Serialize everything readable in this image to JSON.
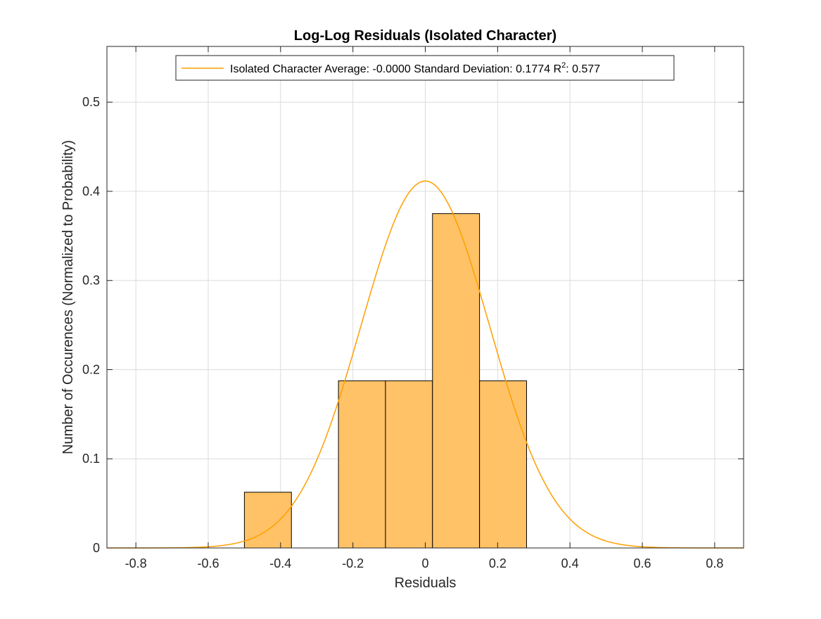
{
  "chart_data": {
    "type": "bar",
    "title": "Log-Log Residuals (Isolated Character)",
    "xlabel": "Residuals",
    "ylabel": "Number of Occurences (Normalized to Probability)",
    "xlim": [
      -0.88,
      0.88
    ],
    "ylim": [
      0,
      0.5625
    ],
    "xticks": [
      -0.8,
      -0.6,
      -0.4,
      -0.2,
      0,
      0.2,
      0.4,
      0.6,
      0.8
    ],
    "xtick_labels": [
      "-0.8",
      "-0.6",
      "-0.4",
      "-0.2",
      "0",
      "0.2",
      "0.4",
      "0.6",
      "0.8"
    ],
    "yticks": [
      0,
      0.1,
      0.2,
      0.3,
      0.4,
      0.5
    ],
    "ytick_labels": [
      "0",
      "0.1",
      "0.2",
      "0.3",
      "0.4",
      "0.5"
    ],
    "grid": true,
    "histogram": {
      "bin_edges": [
        -0.5,
        -0.37,
        -0.24,
        -0.11,
        0.02,
        0.15,
        0.28
      ],
      "values": [
        0.0625,
        0,
        0.1875,
        0.1875,
        0.375,
        0.1875
      ],
      "color": "#FFC266",
      "edge_color": "#000000"
    },
    "fit_curve": {
      "type": "normal-pdf",
      "mean": 0.0,
      "std": 0.1774,
      "scale": 0.183,
      "color": "#FF9F00"
    },
    "legend": {
      "placement": "top",
      "text_main": "Isolated Character Average: -0.0000 Standard Deviation: 0.1774 R",
      "text_sup": "2",
      "text_tail": ": 0.577"
    }
  }
}
